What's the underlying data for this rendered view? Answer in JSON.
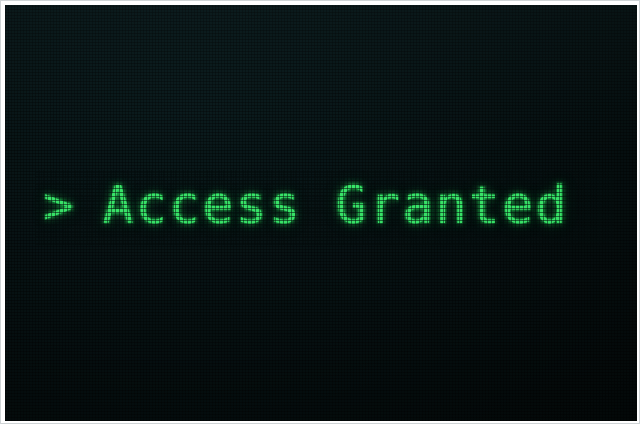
{
  "terminal": {
    "prompt": ">",
    "message": "Access Granted"
  },
  "colors": {
    "text": "#39e86a",
    "background": "#061112"
  }
}
